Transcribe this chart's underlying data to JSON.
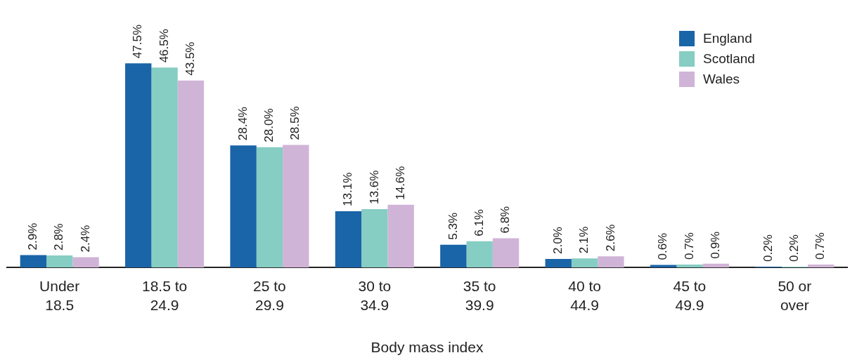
{
  "chart_data": {
    "type": "bar",
    "xlabel": "Body mass index",
    "categories": [
      "Under 18.5",
      "18.5 to 24.9",
      "25 to 29.9",
      "30 to 34.9",
      "35 to 39.9",
      "40 to 44.9",
      "45 to 49.9",
      "50 or over"
    ],
    "series": [
      {
        "name": "England",
        "color": "#1a64a8",
        "values": [
          2.9,
          47.5,
          28.4,
          13.1,
          5.3,
          2.0,
          0.6,
          0.2
        ],
        "value_labels": [
          "2.9%",
          "47.5%",
          "28.4%",
          "13.1%",
          "5.3%",
          "2.0%",
          "0.6%",
          "0.2%"
        ]
      },
      {
        "name": "Scotland",
        "color": "#86cdc3",
        "values": [
          2.8,
          46.5,
          28.0,
          13.6,
          6.1,
          2.1,
          0.7,
          0.2
        ],
        "value_labels": [
          "2.8%",
          "46.5%",
          "28.0%",
          "13.6%",
          "6.1%",
          "2.1%",
          "0.7%",
          "0.2%"
        ]
      },
      {
        "name": "Wales",
        "color": "#d0b4d7",
        "values": [
          2.4,
          43.5,
          28.5,
          14.6,
          6.8,
          2.6,
          0.9,
          0.7
        ],
        "value_labels": [
          "2.4%",
          "43.5%",
          "28.5%",
          "14.6%",
          "6.8%",
          "2.6%",
          "0.9%",
          "0.7%"
        ]
      }
    ],
    "legend": "top right",
    "grid": false,
    "tick_labels": "x"
  }
}
